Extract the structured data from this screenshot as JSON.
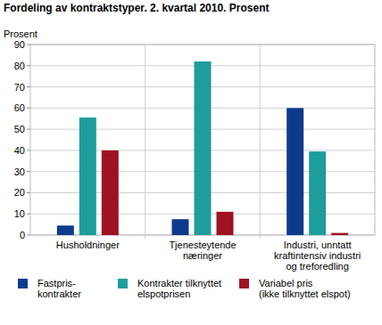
{
  "chart_data": {
    "type": "bar",
    "title": "Fordeling av kontraktstyper. 2. kvartal 2010. Prosent",
    "y_label": "Prosent",
    "categories": [
      "Husholdninger",
      "Tjenesteytende\nnæringer",
      "Industri, unntatt\nkraftintensiv industri\nog treforedling"
    ],
    "series": [
      {
        "name": "Fastpris-\nkontrakter",
        "color": "#0d3b8c",
        "values": [
          4.5,
          7.5,
          60
        ]
      },
      {
        "name": "Kontrakter tilknyttet\nelspotprisen",
        "color": "#1f9c9c",
        "values": [
          55.5,
          82,
          39.5
        ]
      },
      {
        "name": "Variabel pris\n(ikke tilknyttet elspot)",
        "color": "#9e1222",
        "values": [
          40,
          11,
          1
        ]
      }
    ],
    "ylim": [
      0,
      90
    ],
    "yticks": [
      0,
      10,
      20,
      30,
      40,
      50,
      60,
      70,
      80,
      90
    ],
    "grid": true,
    "legend": "bottom"
  }
}
